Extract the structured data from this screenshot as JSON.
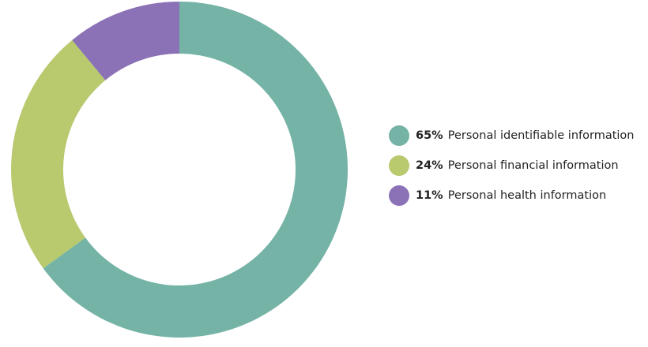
{
  "chart_data": {
    "type": "pie",
    "categories": [
      "Personal identifiable information",
      "Personal financial information",
      "Personal health information"
    ],
    "values": [
      65,
      24,
      11
    ],
    "value_labels": [
      "65%",
      "24%",
      "11%"
    ],
    "colors": [
      "#74b3a6",
      "#b8c96e",
      "#8b72b6"
    ]
  }
}
